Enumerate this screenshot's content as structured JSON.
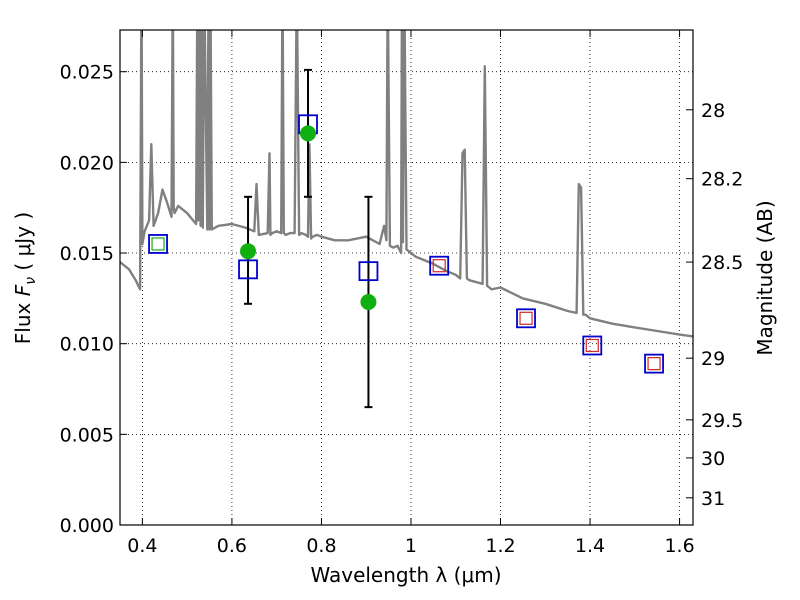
{
  "chart_data": {
    "type": "scatter",
    "title": "",
    "xlabel": "Wavelength  λ (μm)",
    "ylabel": "Flux  F_ν  ( μJy )",
    "y2label": "Magnitude (AB)",
    "xlim": [
      0.35,
      1.63
    ],
    "ylim": [
      0.0,
      0.0273
    ],
    "grid": true,
    "x_ticks": [
      0.4,
      0.6,
      0.8,
      1.0,
      1.2,
      1.4,
      1.6
    ],
    "x_tick_labels": [
      "0.4",
      "0.6",
      "0.8",
      "1",
      "1.2",
      "1.4",
      "1.6"
    ],
    "y_ticks": [
      0.0,
      0.005,
      0.01,
      0.015,
      0.02,
      0.025
    ],
    "y_tick_labels": [
      "0.000",
      "0.005",
      "0.010",
      "0.015",
      "0.020",
      "0.025"
    ],
    "y2_ticks": [
      {
        "label": "28",
        "flux": 0.0229
      },
      {
        "label": "28.2",
        "flux": 0.0191
      },
      {
        "label": "28.5",
        "flux": 0.0145
      },
      {
        "label": "29",
        "flux": 0.0092
      },
      {
        "label": "29.5",
        "flux": 0.0058
      },
      {
        "label": "30",
        "flux": 0.0037
      },
      {
        "label": "31",
        "flux": 0.0015
      }
    ],
    "colors": {
      "sed": "#808080",
      "model_box": "#0000cc",
      "model_box_inner": "#d62728",
      "observed": "#11b011",
      "grid": "#000000"
    },
    "sed_model": {
      "x": [
        0.35,
        0.37,
        0.385,
        0.395,
        0.398,
        0.4,
        0.405,
        0.415,
        0.42,
        0.425,
        0.435,
        0.445,
        0.455,
        0.465,
        0.468,
        0.47,
        0.472,
        0.48,
        0.5,
        0.52,
        0.523,
        0.525,
        0.527,
        0.53,
        0.533,
        0.535,
        0.538,
        0.545,
        0.548,
        0.55,
        0.552,
        0.555,
        0.57,
        0.6,
        0.63,
        0.65,
        0.655,
        0.66,
        0.68,
        0.684,
        0.686,
        0.69,
        0.7,
        0.71,
        0.713,
        0.716,
        0.72,
        0.73,
        0.74,
        0.745,
        0.75,
        0.755,
        0.765,
        0.77,
        0.773,
        0.777,
        0.78,
        0.79,
        0.8,
        0.83,
        0.86,
        0.9,
        0.93,
        0.94,
        0.945,
        0.948,
        0.953,
        0.96,
        0.97,
        0.978,
        0.98,
        0.982,
        0.985,
        0.99,
        1.01,
        1.05,
        1.08,
        1.1,
        1.11,
        1.115,
        1.12,
        1.125,
        1.13,
        1.16,
        1.165,
        1.17,
        1.175,
        1.18,
        1.2,
        1.25,
        1.3,
        1.35,
        1.37,
        1.375,
        1.38,
        1.385,
        1.39,
        1.4,
        1.45,
        1.5,
        1.55,
        1.6,
        1.63
      ],
      "y": [
        0.0145,
        0.0141,
        0.0135,
        0.013,
        0.03,
        0.0155,
        0.0162,
        0.0168,
        0.021,
        0.0165,
        0.0172,
        0.0185,
        0.0178,
        0.017,
        0.03,
        0.0175,
        0.0172,
        0.0176,
        0.0172,
        0.0166,
        0.03,
        0.0168,
        0.03,
        0.0165,
        0.03,
        0.0164,
        0.03,
        0.0163,
        0.03,
        0.0163,
        0.03,
        0.0163,
        0.0165,
        0.0166,
        0.0164,
        0.0162,
        0.0188,
        0.016,
        0.0161,
        0.0205,
        0.016,
        0.0161,
        0.0162,
        0.0161,
        0.03,
        0.0161,
        0.016,
        0.0161,
        0.0161,
        0.03,
        0.016,
        0.0161,
        0.016,
        0.0159,
        0.021,
        0.0158,
        0.0159,
        0.016,
        0.0159,
        0.0157,
        0.0157,
        0.0159,
        0.0155,
        0.0165,
        0.0157,
        0.03,
        0.0154,
        0.0153,
        0.0154,
        0.015,
        0.03,
        0.0156,
        0.03,
        0.0152,
        0.0148,
        0.0144,
        0.014,
        0.0138,
        0.0136,
        0.0205,
        0.0207,
        0.0136,
        0.0135,
        0.0133,
        0.0253,
        0.0132,
        0.0131,
        0.013,
        0.0131,
        0.0125,
        0.0122,
        0.0118,
        0.0117,
        0.0188,
        0.0186,
        0.0116,
        0.0116,
        0.0114,
        0.0111,
        0.0109,
        0.0107,
        0.0105,
        0.0104
      ]
    },
    "model_points": {
      "x": [
        0.435,
        0.636,
        0.77,
        0.905,
        1.063,
        1.257,
        1.405,
        1.543
      ],
      "y": [
        0.0155,
        0.0141,
        0.0221,
        0.014,
        0.0143,
        0.0114,
        0.0099,
        0.0089
      ]
    },
    "observed_points": {
      "x": [
        0.636,
        0.77,
        0.905
      ],
      "y": [
        0.0151,
        0.0216,
        0.0123
      ],
      "yerr_low": [
        0.0122,
        0.0181,
        0.0065
      ],
      "yerr_high": [
        0.0181,
        0.0251,
        0.0181
      ]
    }
  }
}
